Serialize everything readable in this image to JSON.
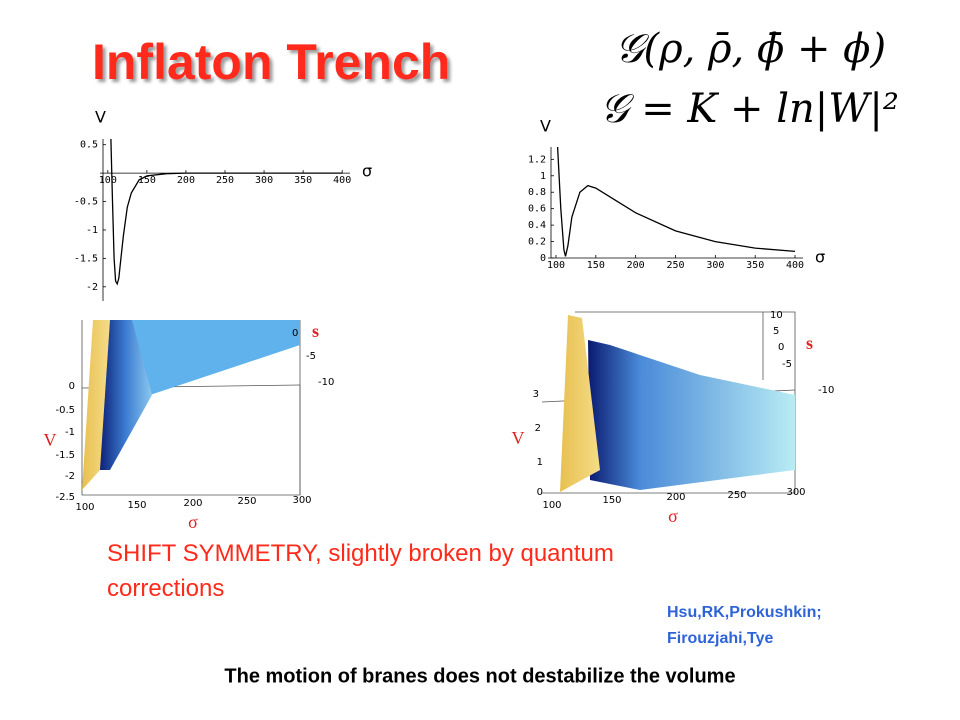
{
  "title": "Inflaton Trench",
  "formulas": [
    "𝒢(ρ, ρ̄, ϕ̄ + ϕ)",
    "𝒢 = K + ln|W|²"
  ],
  "chart_data": [
    {
      "type": "line",
      "y_label": "V",
      "x_label": "σ",
      "x": [
        104,
        106,
        108,
        110,
        112,
        114,
        116,
        120,
        125,
        130,
        140,
        150,
        175,
        200,
        300,
        400
      ],
      "y": [
        0.6,
        -0.5,
        -1.5,
        -1.9,
        -1.95,
        -1.85,
        -1.6,
        -1.1,
        -0.6,
        -0.35,
        -0.12,
        -0.05,
        -0.01,
        0,
        0,
        0
      ],
      "color": "#000000",
      "xlim": [
        90,
        410
      ],
      "ylim": [
        -2.25,
        0.6
      ],
      "xticks": [
        100,
        150,
        200,
        250,
        300,
        350,
        400
      ],
      "yticks": [
        0.5,
        -0.5,
        -1,
        -1.5,
        -2
      ]
    },
    {
      "type": "line",
      "y_label": "V",
      "x_label": "σ",
      "x": [
        102,
        106,
        110,
        112,
        115,
        120,
        130,
        140,
        150,
        175,
        200,
        250,
        300,
        350,
        400
      ],
      "y": [
        1.35,
        0.6,
        0.1,
        0.02,
        0.15,
        0.5,
        0.8,
        0.88,
        0.85,
        0.7,
        0.55,
        0.33,
        0.2,
        0.12,
        0.08
      ],
      "color": "#000000",
      "xlim": [
        90,
        410
      ],
      "ylim": [
        0,
        1.35
      ],
      "xticks": [
        100,
        150,
        200,
        250,
        300,
        350,
        400
      ],
      "yticks": [
        0,
        0.2,
        0.4,
        0.6,
        0.8,
        1,
        1.2
      ]
    }
  ],
  "surface_plots": [
    {
      "z_label": "V",
      "x_label": "σ",
      "s_label": "s",
      "z_ticks": [
        "0",
        "-0.5",
        "-1",
        "-1.5",
        "-2",
        "-2.5"
      ],
      "x_ticks": [
        "100",
        "150",
        "200",
        "250",
        "300"
      ],
      "s_ticks": [
        "0",
        "-5",
        "-10"
      ]
    },
    {
      "z_label": "V",
      "x_label": "σ",
      "s_label": "s",
      "z_ticks": [
        "0",
        "1",
        "2",
        "3"
      ],
      "x_ticks": [
        "100",
        "150",
        "200",
        "250",
        "300"
      ],
      "s_ticks": [
        "10",
        "5",
        "0",
        "-5",
        "-10"
      ]
    }
  ],
  "statement": "SHIFT SYMMETRY, slightly broken by quantum corrections",
  "credits": [
    "Hsu,RK,Prokushkin;",
    "Firouzjahi,Tye"
  ],
  "footer": "The motion of branes does not destabilize the volume"
}
